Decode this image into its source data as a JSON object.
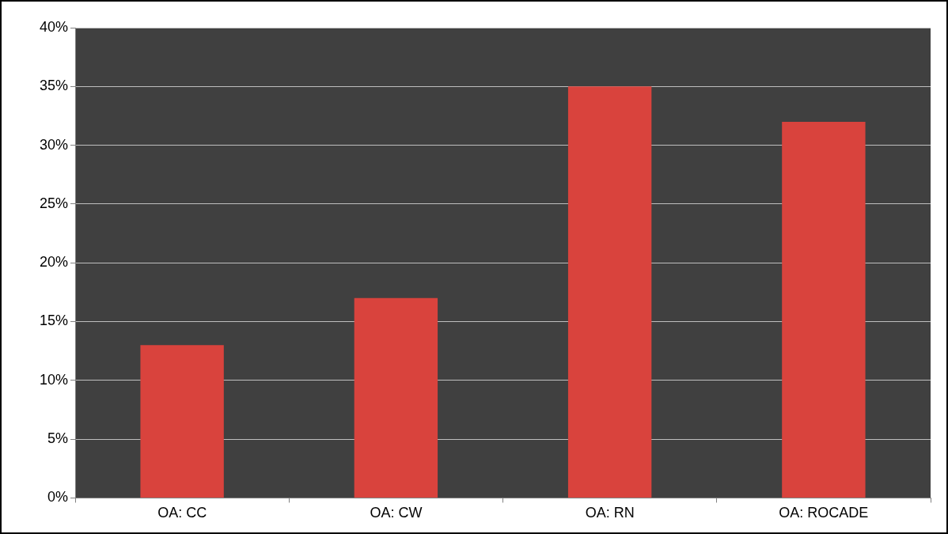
{
  "chart_data": {
    "type": "bar",
    "categories": [
      "OA: CC",
      "OA: CW",
      "OA: RN",
      "OA: ROCADE"
    ],
    "values": [
      13,
      17,
      35,
      32
    ],
    "color": "#d9433d",
    "ylim": [
      0,
      40
    ],
    "yticks": [
      {
        "value": 0,
        "label": "0%"
      },
      {
        "value": 5,
        "label": "5%"
      },
      {
        "value": 10,
        "label": "10%"
      },
      {
        "value": 15,
        "label": "15%"
      },
      {
        "value": 20,
        "label": "20%"
      },
      {
        "value": 25,
        "label": "25%"
      },
      {
        "value": 30,
        "label": "30%"
      },
      {
        "value": 35,
        "label": "35%"
      },
      {
        "value": 40,
        "label": "40%"
      }
    ],
    "grid": "y"
  }
}
